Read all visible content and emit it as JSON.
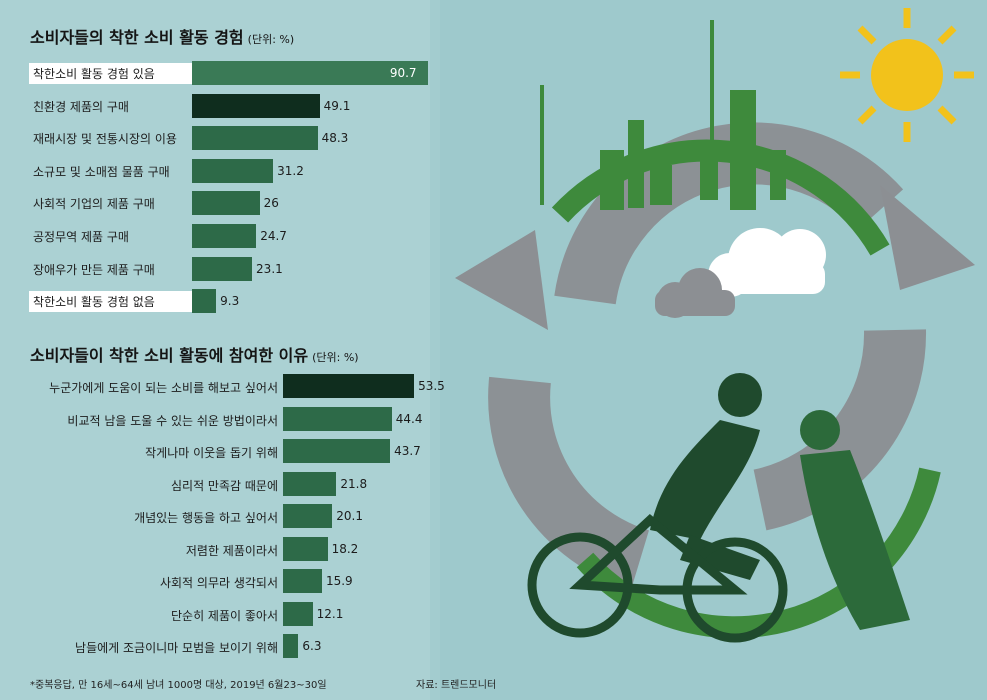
{
  "colors": {
    "background": "#9ec9cc",
    "bar": "#2d6a48",
    "bar_highlight": "#0f2d1e",
    "ring": "#8c8f93",
    "sun": "#f2c21b",
    "silhouette": "#1f4a2d"
  },
  "chart_data": [
    {
      "type": "bar",
      "orientation": "horizontal",
      "title": "소비자들의 착한 소비 활동 경험",
      "unit": "(단위: %)",
      "categories": [
        "착한소비 활동 경험 있음",
        "친환경 제품의 구매",
        "재래시장 및 전통시장의 이용",
        "소규모 및 소매점 물품 구매",
        "사회적 기업의 제품 구매",
        "공정무역 제품 구매",
        "장애우가 만든 제품 구매",
        "착한소비 활동 경험 없음"
      ],
      "value_labels": [
        "90.7",
        "49.1",
        "48.3",
        "31.2",
        "26",
        "24.7",
        "23.1",
        "9.3"
      ],
      "values": [
        90.7,
        49.1,
        48.3,
        31.2,
        26,
        24.7,
        23.1,
        9.3
      ],
      "highlighted_labels": [
        0,
        7
      ],
      "dark_bar": 1
    },
    {
      "type": "bar",
      "orientation": "horizontal",
      "title": "소비자들이 착한 소비 활동에 참여한 이유",
      "unit": "(단위: %)",
      "categories": [
        "누군가에게 도움이 되는 소비를 해보고 싶어서",
        "비교적 남을 도울 수 있는 쉬운 방법이라서",
        "작게나마 이웃을 돕기 위해",
        "심리적 만족감 때문에",
        "개념있는 행동을 하고 싶어서",
        "저렴한 제품이라서",
        "사회적 의무라 생각되서",
        "단순히 제품이 좋아서",
        "남들에게 조금이니마 모범을 보이기 위해"
      ],
      "value_labels": [
        "53.5",
        "44.4",
        "43.7",
        "21.8",
        "20.1",
        "18.2",
        "15.9",
        "12.1",
        "6.3"
      ],
      "values": [
        53.5,
        44.4,
        43.7,
        21.8,
        20.1,
        18.2,
        15.9,
        12.1,
        6.3
      ],
      "dark_bar": 0
    }
  ],
  "footnote": "*중복응답, 만 16세~64세 남녀 1000명 대상, 2019년 6월23~30일",
  "source": "자료: 트렌드모니터"
}
